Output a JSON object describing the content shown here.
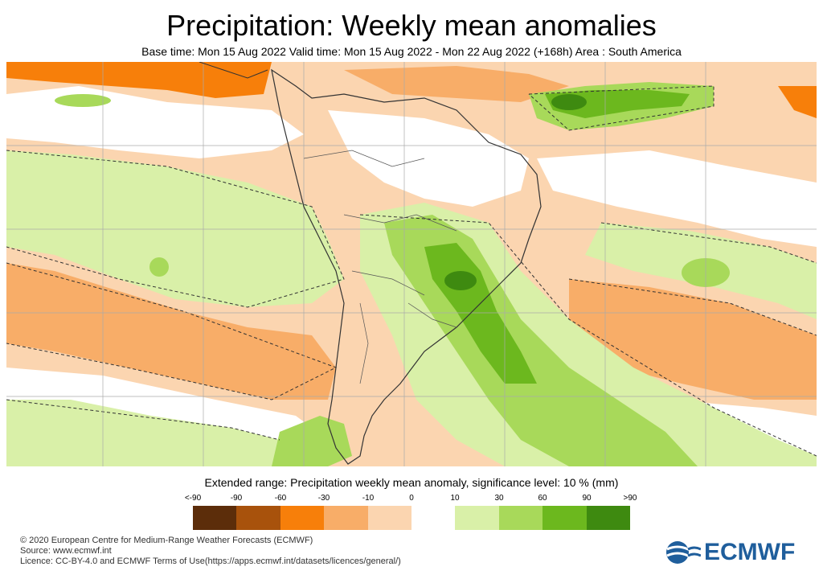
{
  "title": "Precipitation: Weekly mean anomalies",
  "subtitle": "Base time: Mon 15 Aug 2022 Valid time: Mon 15 Aug 2022 - Mon 22 Aug 2022 (+168h) Area : South America",
  "legend": {
    "title": "Extended range: Precipitation weekly mean anomaly, significance level: 10 % (mm)",
    "labels": [
      "<-90",
      "-90",
      "-60",
      "-30",
      "-10",
      "0",
      "10",
      "30",
      "60",
      "90",
      ">90"
    ],
    "colors": [
      "#5c2d0a",
      "#a8520c",
      "#f77f0a",
      "#f8ad68",
      "#fbd5b0",
      "#ffffff",
      "#d9f0a8",
      "#a8d95a",
      "#6cb81e",
      "#3e8a10",
      "#2c5e08"
    ]
  },
  "map": {
    "palette": {
      "strong_dry": "#f77f0a",
      "dry": "#f8ad68",
      "slight_dry": "#fbd5b0",
      "neutral": "#ffffff",
      "slight_wet": "#d9f0a8",
      "wet": "#a8d95a",
      "very_wet": "#6cb81e",
      "extreme_wet": "#3e8a10",
      "grid": "#aaaaaa",
      "coast": "#333333"
    }
  },
  "footer": {
    "copyright": "© 2020 European Centre for Medium-Range Weather Forecasts (ECMWF)",
    "source": "Source: www.ecmwf.int",
    "licence": "Licence: CC-BY-4.0 and ECMWF Terms of Use(https://apps.ecmwf.int/datasets/licences/general/)"
  },
  "logo": {
    "text": "ECMWF",
    "color": "#1f5e9c"
  }
}
